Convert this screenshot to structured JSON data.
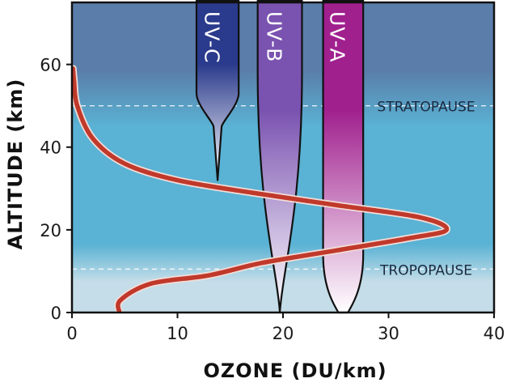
{
  "chart_data": {
    "type": "line",
    "title": "",
    "xlabel": "OZONE (DU/km)",
    "ylabel": "ALTITUDE (km)",
    "xlim": [
      0,
      40
    ],
    "ylim": [
      0,
      75
    ],
    "x_ticks": [
      "0",
      "10",
      "20",
      "30",
      "40"
    ],
    "y_ticks": [
      "0",
      "20",
      "40",
      "60"
    ],
    "grid": false,
    "series": [
      {
        "name": "",
        "color": "#c0392b",
        "points": [
          {
            "x": 4.5,
            "y": 0
          },
          {
            "x": 4.6,
            "y": 3
          },
          {
            "x": 7.5,
            "y": 7
          },
          {
            "x": 13,
            "y": 9
          },
          {
            "x": 18,
            "y": 12
          },
          {
            "x": 25,
            "y": 15
          },
          {
            "x": 32,
            "y": 18
          },
          {
            "x": 35.5,
            "y": 20
          },
          {
            "x": 33,
            "y": 23
          },
          {
            "x": 25,
            "y": 26
          },
          {
            "x": 17,
            "y": 29
          },
          {
            "x": 10,
            "y": 32
          },
          {
            "x": 5,
            "y": 36
          },
          {
            "x": 2,
            "y": 42
          },
          {
            "x": 0.5,
            "y": 50
          },
          {
            "x": 0.2,
            "y": 56
          },
          {
            "x": 0.1,
            "y": 59
          }
        ]
      }
    ],
    "reference_lines": [
      {
        "label": "STRATOPAUSE",
        "y": 50
      },
      {
        "label": "TROPOPAUSE",
        "y": 10.5
      }
    ],
    "uv_bands": [
      {
        "label": "UV-C",
        "x_range": [
          11.8,
          15.8
        ],
        "min_altitude": 32,
        "color": "#2a3a8c"
      },
      {
        "label": "UV-B",
        "x_range": [
          17.6,
          21.8
        ],
        "min_altitude": 0,
        "color": "#7a52b0"
      },
      {
        "label": "UV-A",
        "x_range": [
          23.8,
          27.6
        ],
        "min_altitude": 0,
        "color": "#a0208e"
      }
    ],
    "background_colors": {
      "upper": "#5a7ea9",
      "middle": "#5ab2d4",
      "lower": "#c4dde8"
    }
  }
}
